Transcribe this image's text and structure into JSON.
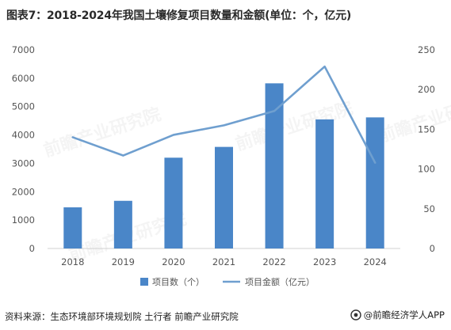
{
  "chart_data": {
    "type": "bar",
    "title": "图表7：2018-2024年我国土壤修复项目数量和金额(单位：个，亿元)",
    "categories": [
      "2018",
      "2019",
      "2020",
      "2021",
      "2022",
      "2023",
      "2024"
    ],
    "series": [
      {
        "name": "项目数（个）",
        "type": "bar",
        "axis": "left",
        "color": "#4a86c8",
        "values": [
          1450,
          1680,
          3200,
          3580,
          5820,
          4550,
          4620
        ]
      },
      {
        "name": "项目金额（亿元）",
        "type": "line",
        "axis": "right",
        "color": "#6f9fcf",
        "values": [
          140,
          117,
          143,
          155,
          173,
          229,
          108
        ]
      }
    ],
    "y_left": {
      "ylim": [
        0,
        7000
      ],
      "ticks": [
        "0",
        "1000",
        "2000",
        "3000",
        "4000",
        "5000",
        "6000",
        "7000"
      ]
    },
    "y_right": {
      "ylim": [
        0,
        250
      ],
      "ticks": [
        "0",
        "50",
        "100",
        "150",
        "200",
        "250"
      ]
    },
    "grid": false,
    "legend_position": "bottom"
  },
  "footer": {
    "source": "资料来源：生态环境部环境规划院 土行者 前瞻产业研究院",
    "brand": "@前瞻经济学人APP"
  },
  "watermark": {
    "text": "前瞻产业研究院"
  }
}
